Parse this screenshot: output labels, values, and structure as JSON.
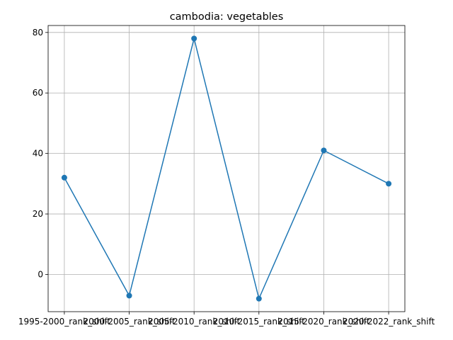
{
  "chart_data": {
    "type": "line",
    "title": "cambodia: vegetables",
    "xlabel": "",
    "ylabel": "",
    "categories": [
      "1995-2000_rank_shift",
      "2000-2005_rank_shift",
      "2005-2010_rank_shift",
      "2010-2015_rank_shift",
      "2015-2020_rank_shift",
      "2020-2022_rank_shift"
    ],
    "series": [
      {
        "values": [
          32,
          -7,
          78,
          -8,
          41,
          30
        ],
        "color": "#1f77b4",
        "marker": "circle"
      }
    ],
    "ylim": [
      -12.3,
      82.3
    ],
    "yticks": [
      0,
      20,
      40,
      60,
      80
    ],
    "grid": true
  }
}
